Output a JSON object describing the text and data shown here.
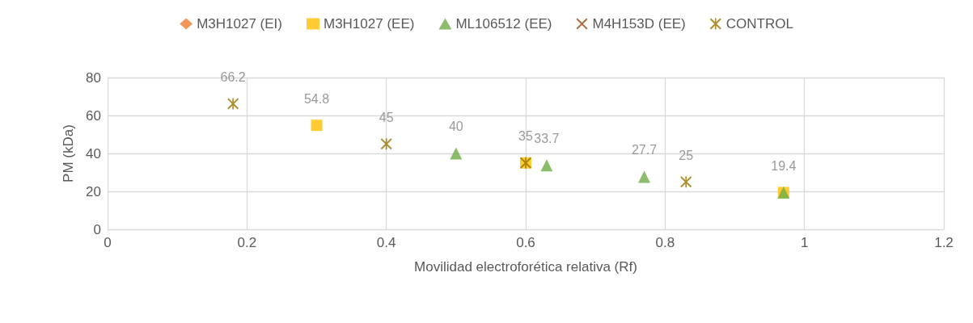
{
  "chart_data": {
    "type": "scatter",
    "xlabel": "Movilidad electroforética relativa (Rf)",
    "ylabel": "PM (kDa)",
    "xlim": [
      0,
      1.2
    ],
    "xticks": [
      0,
      0.2,
      0.4,
      0.6,
      0.8,
      1,
      1.2
    ],
    "ylim": [
      0,
      80
    ],
    "yticks": [
      0,
      20,
      40,
      60,
      80
    ],
    "grid": true,
    "legend": "top",
    "series": [
      {
        "name": "M3H1027 (EI)",
        "color": "#ed7d31",
        "marker": "diamond"
      },
      {
        "name": "M3H1027 (EE)",
        "color": "#ffc000",
        "marker": "square",
        "x": [
          0.3,
          0.6,
          0.97
        ],
        "values": [
          54.8,
          35,
          19.4
        ],
        "value_labels": [
          "54.8",
          null,
          "19.4"
        ]
      },
      {
        "name": "ML106512 (EE)",
        "color": "#70ad47",
        "marker": "triangle",
        "x": [
          0.5,
          0.63,
          0.77,
          0.97
        ],
        "values": [
          40,
          33.7,
          27.7,
          19.4
        ],
        "value_labels": [
          "40",
          "33.7",
          "27.7",
          null
        ]
      },
      {
        "name": "M4H153D (EE)",
        "color": "#9e480e",
        "marker": "cross"
      },
      {
        "name": "CONTROL",
        "color": "#997300",
        "marker": "star",
        "x": [
          0.18,
          0.4,
          0.6,
          0.83
        ],
        "values": [
          66.2,
          45,
          35,
          25
        ],
        "value_labels": [
          "66.2",
          "45",
          "35",
          "25"
        ]
      }
    ]
  }
}
